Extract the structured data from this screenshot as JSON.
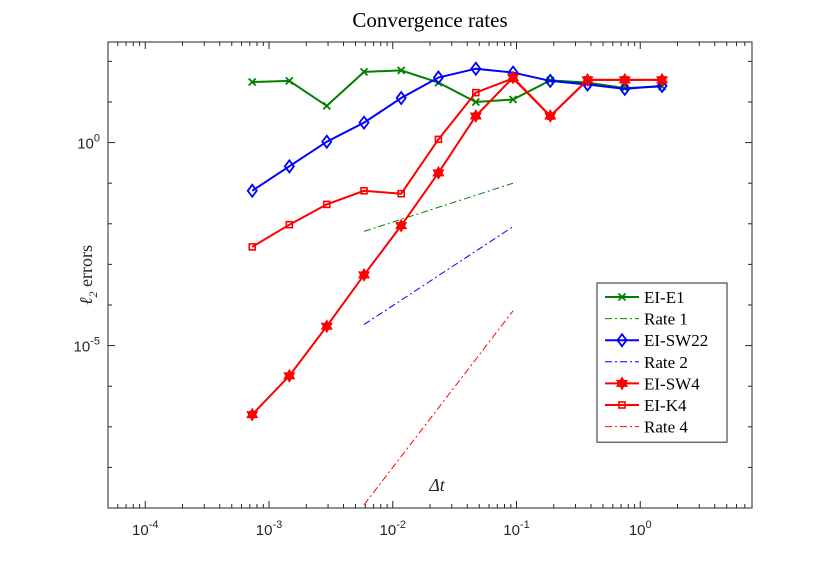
{
  "chart_data": {
    "type": "line",
    "title": "Convergence rates",
    "xlabel": "Δt",
    "ylabel_main": "ℓ",
    "ylabel_sub": "2",
    "ylabel_rest": " errors",
    "xscale": "log",
    "yscale": "log",
    "xlim": [
      5e-05,
      8
    ],
    "ylim": [
      1e-09,
      300
    ],
    "xticks": [
      {
        "value": 0.0001,
        "base": "10",
        "exp": "-4"
      },
      {
        "value": 0.001,
        "base": "10",
        "exp": "-3"
      },
      {
        "value": 0.01,
        "base": "10",
        "exp": "-2"
      },
      {
        "value": 0.1,
        "base": "10",
        "exp": "-1"
      },
      {
        "value": 1,
        "base": "10",
        "exp": "0"
      }
    ],
    "yticks": [
      {
        "value": 1,
        "base": "10",
        "exp": "0"
      },
      {
        "value": 1e-05,
        "base": "10",
        "exp": "-5"
      }
    ],
    "grid": false,
    "legend_position": "bottom-right",
    "series": [
      {
        "name": "EI-E1",
        "color": "#008000",
        "marker": "x",
        "style": "solid",
        "x": [
          0.000732,
          0.00146,
          0.00293,
          0.00586,
          0.0117,
          0.0234,
          0.0469,
          0.0938,
          0.1875,
          0.375,
          0.75,
          1.5
        ],
        "y": [
          31,
          33,
          8,
          55,
          60,
          30,
          10,
          11.5,
          34,
          30,
          22,
          24
        ]
      },
      {
        "name": "Rate 1",
        "color": "#008000",
        "style": "dashdot",
        "x": [
          0.00586,
          0.0938
        ],
        "y": [
          0.0065,
          0.1
        ]
      },
      {
        "name": "EI-SW22",
        "color": "#0000ff",
        "marker": "diamond",
        "style": "solid",
        "x": [
          0.000732,
          0.00146,
          0.00293,
          0.00586,
          0.0117,
          0.0234,
          0.0469,
          0.0938,
          0.1875,
          0.375,
          0.75,
          1.5
        ],
        "y": [
          0.065,
          0.26,
          1.05,
          3.1,
          12.5,
          40,
          66,
          53,
          33,
          27,
          21,
          25
        ]
      },
      {
        "name": "Rate 2",
        "color": "#0000ff",
        "style": "dashdot",
        "x": [
          0.00586,
          0.0938
        ],
        "y": [
          3.3e-05,
          0.0085
        ]
      },
      {
        "name": "EI-SW4",
        "color": "#ff0000",
        "marker": "hexagram",
        "style": "solid",
        "x": [
          0.000732,
          0.00146,
          0.00293,
          0.00586,
          0.0117,
          0.0234,
          0.0469,
          0.0938,
          0.1875,
          0.375,
          0.75,
          1.5
        ],
        "y": [
          2e-07,
          1.8e-06,
          3e-05,
          0.00055,
          0.009,
          0.18,
          4.5,
          40,
          4.5,
          35,
          35,
          35
        ]
      },
      {
        "name": "EI-K4",
        "color": "#ff0000",
        "marker": "square",
        "style": "solid",
        "x": [
          0.000732,
          0.00146,
          0.00293,
          0.00586,
          0.0117,
          0.0234,
          0.0469,
          0.0938,
          0.1875,
          0.375,
          0.75,
          1.5
        ],
        "y": [
          0.0027,
          0.0095,
          0.03,
          0.065,
          0.055,
          1.2,
          17,
          38,
          4.5,
          35,
          35,
          35
        ]
      },
      {
        "name": "Rate 4",
        "color": "#ff0000",
        "style": "dashdot",
        "x": [
          0.00586,
          0.0938
        ],
        "y": [
          1.2e-09,
          7.2e-05
        ]
      }
    ]
  }
}
